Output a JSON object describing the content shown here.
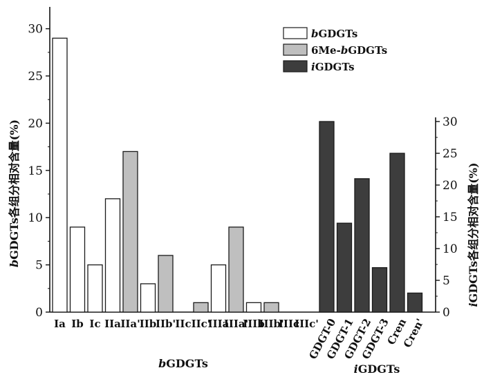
{
  "chart_data": {
    "type": "bar",
    "title": "",
    "colors": {
      "bGDGTs": "#ffffff",
      "6Me-bGDGTs": "#bfbfbf",
      "iGDGTs": "#3d3d3d",
      "stroke": "#1a1a1a"
    },
    "legend": {
      "placement": "top-right",
      "entries": [
        {
          "key": "bGDGTs",
          "italic_prefix": "b",
          "rest": "GDGTs"
        },
        {
          "key": "6Me-bGDGTs",
          "prefix": "6Me-",
          "italic_part": "b",
          "rest": "GDGTs"
        },
        {
          "key": "iGDGTs",
          "italic_prefix": "i",
          "rest": "GDGTs"
        }
      ]
    },
    "left_axis": {
      "title_italic": "b",
      "title_rest": "GDGTs各组分相对含量(%)",
      "ylim": [
        0,
        32
      ],
      "ticks": [
        0,
        5,
        10,
        15,
        20,
        25,
        30
      ]
    },
    "right_axis": {
      "title_italic": "i",
      "title_rest": "GDGTs各组分相对含量(%)",
      "ylim": [
        0,
        32
      ],
      "ticks": [
        0,
        5,
        10,
        15,
        20,
        25,
        30
      ]
    },
    "x_groups": [
      {
        "italic": "b",
        "rest": "GDGTs"
      },
      {
        "italic": "i",
        "rest": "GDGTs"
      }
    ],
    "series": [
      {
        "name": "bGDGTs",
        "axis": "left",
        "categories": [
          "Ia",
          "Ib",
          "Ic",
          "IIa",
          "IIa'",
          "IIb",
          "IIb'",
          "IIc",
          "IIc'",
          "IIIa",
          "IIIa'",
          "IIIb",
          "IIIb'",
          "IIIc",
          "IIIc'"
        ],
        "values": [
          29,
          9,
          5,
          12,
          17,
          3,
          6,
          0,
          1,
          5,
          9,
          1,
          1,
          0,
          0
        ],
        "fill_keys": [
          "bGDGTs",
          "bGDGTs",
          "bGDGTs",
          "bGDGTs",
          "6Me-bGDGTs",
          "bGDGTs",
          "6Me-bGDGTs",
          "6Me-bGDGTs",
          "6Me-bGDGTs",
          "bGDGTs",
          "6Me-bGDGTs",
          "bGDGTs",
          "6Me-bGDGTs",
          "bGDGTs",
          "6Me-bGDGTs"
        ]
      },
      {
        "name": "iGDGTs",
        "axis": "right",
        "categories": [
          "GDGT-0",
          "GDGT-1",
          "GDGT-2",
          "GDGT-3",
          "Cren",
          "Cren'"
        ],
        "values": [
          30,
          14,
          21,
          7,
          25,
          3
        ],
        "fill_keys": [
          "iGDGTs",
          "iGDGTs",
          "iGDGTs",
          "iGDGTs",
          "iGDGTs",
          "iGDGTs"
        ]
      }
    ]
  }
}
